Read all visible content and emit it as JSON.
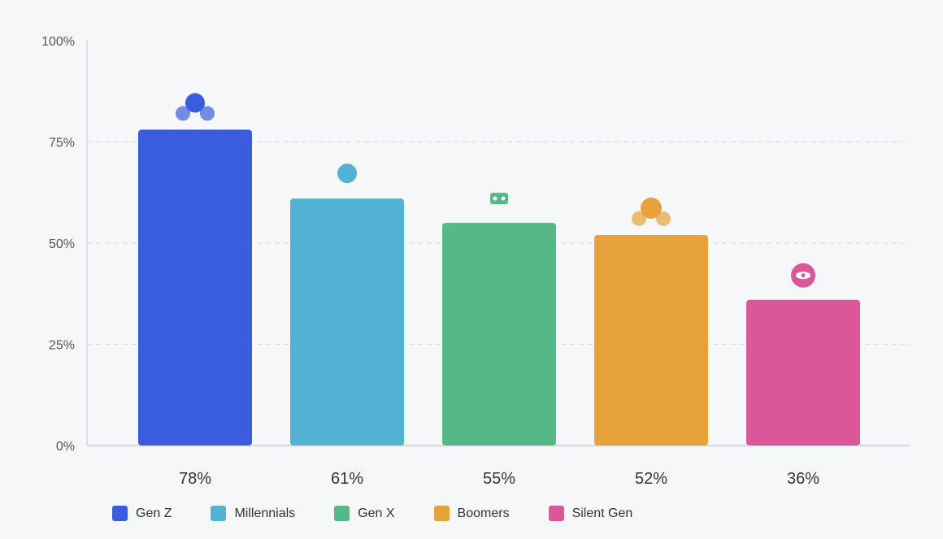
{
  "chart_data": {
    "type": "bar",
    "categories": [
      "Gen Z",
      "Millennials",
      "Gen X",
      "Boomers",
      "Silent Gen"
    ],
    "values": [
      78,
      61,
      55,
      52,
      36
    ],
    "value_labels": [
      "78%",
      "61%",
      "55%",
      "52%",
      "36%"
    ],
    "colors": [
      "#3a5ddf",
      "#52b3d4",
      "#55b886",
      "#e8a23b",
      "#dc579a"
    ],
    "icons": [
      "people-group-icon",
      "person-icon",
      "cash-icon",
      "elderly-couple-icon",
      "eye-icon"
    ],
    "ylim": [
      0,
      100
    ],
    "yticks": [
      "0%",
      "25%",
      "50%",
      "75%",
      "100%"
    ],
    "grid": "horizontal-dashed",
    "legend_position": "bottom-left",
    "title": "",
    "xlabel": "",
    "ylabel": ""
  }
}
